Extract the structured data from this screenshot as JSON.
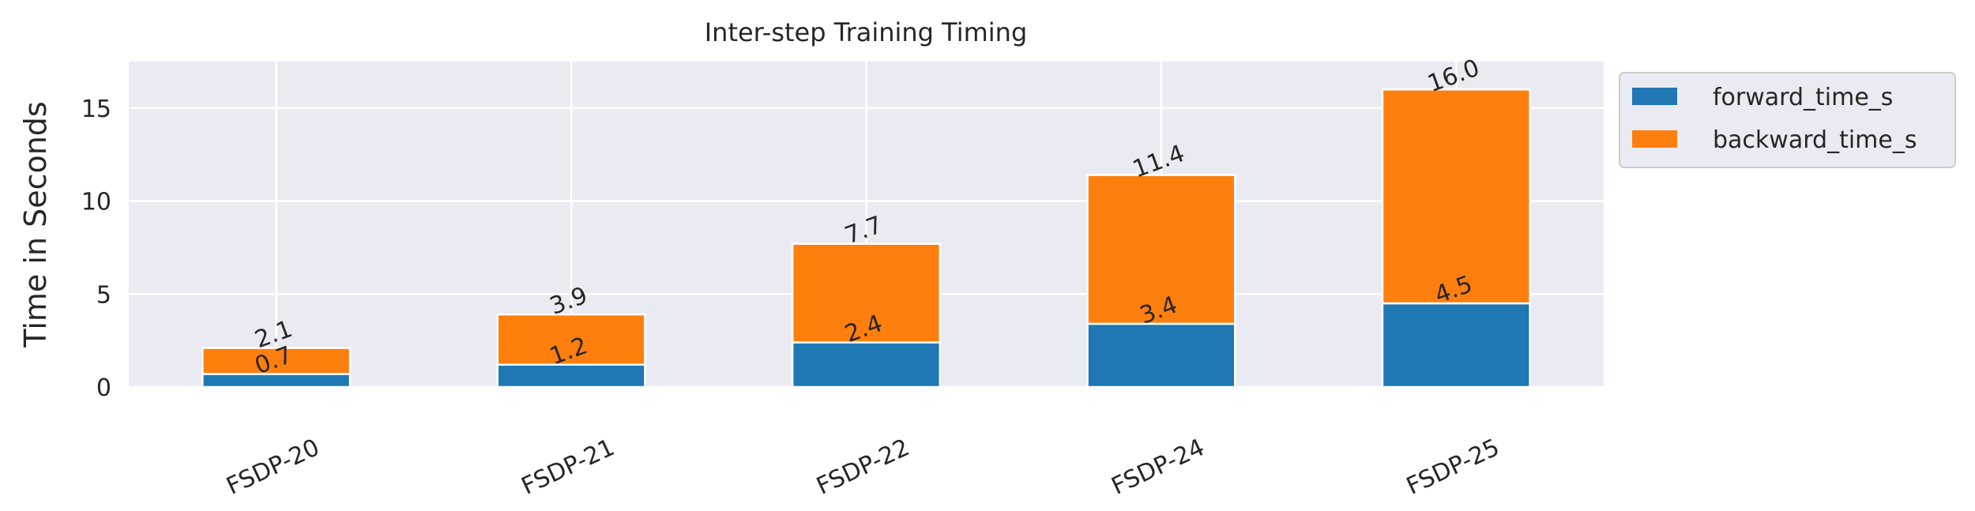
{
  "chart_data": {
    "type": "bar",
    "stacked": true,
    "title": "Inter-step Training Timing",
    "xlabel": "",
    "ylabel": "Time in Seconds",
    "categories": [
      "FSDP-20",
      "FSDP-21",
      "FSDP-22",
      "FSDP-24",
      "FSDP-25"
    ],
    "series": [
      {
        "name": "forward_time_s",
        "color": "#1f77b4",
        "values": [
          0.7,
          1.2,
          2.4,
          3.4,
          4.5
        ]
      },
      {
        "name": "backward_time_s",
        "color": "#ff7f0e",
        "values": [
          1.4,
          2.7,
          5.3,
          8.0,
          11.5
        ]
      }
    ],
    "forward_labels": [
      "0.7",
      "1.2",
      "2.4",
      "3.4",
      "4.5"
    ],
    "total_labels": [
      "2.1",
      "3.9",
      "7.7",
      "11.4",
      "16.0"
    ],
    "yticks": [
      0,
      5,
      10,
      15
    ],
    "ylim": [
      0,
      17.5
    ],
    "grid": true,
    "background": "#eaeaf2",
    "legend_position": "outside upper right"
  }
}
